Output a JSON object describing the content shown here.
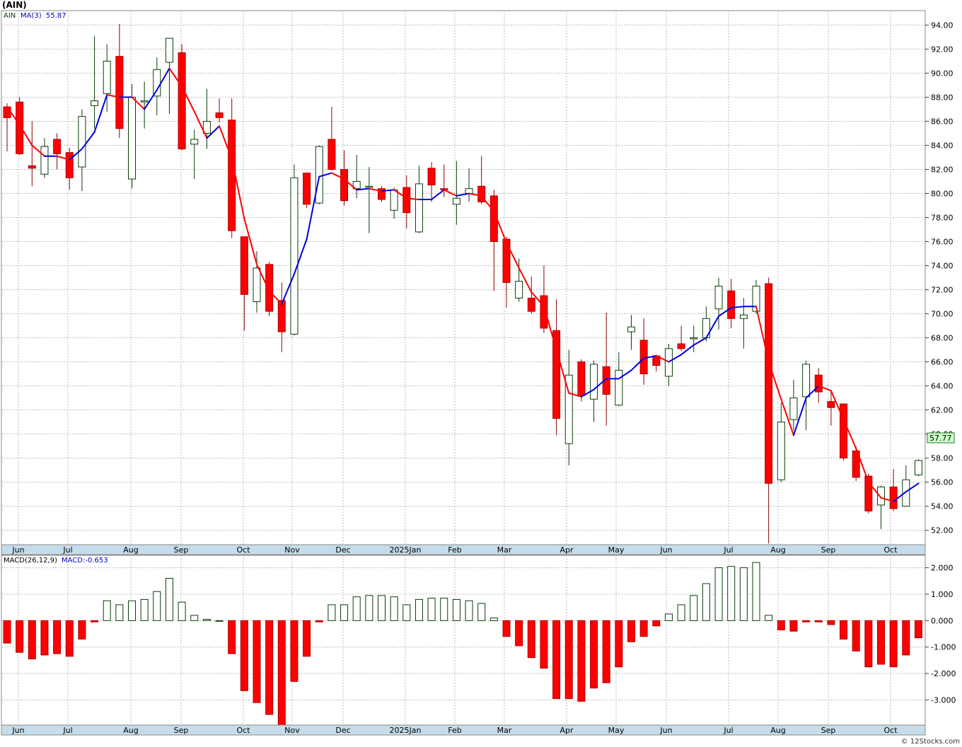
{
  "title": "(AIN)",
  "watermark": "© 12Stocks.com",
  "price_panel": {
    "symbol": "AIN",
    "ma_label": "MA(3)",
    "ma_value": "55.87",
    "last_price_label": "57.77",
    "y_ticks": [
      "94.00",
      "92.00",
      "90.00",
      "88.00",
      "86.00",
      "84.00",
      "82.00",
      "80.00",
      "78.00",
      "76.00",
      "74.00",
      "72.00",
      "70.00",
      "68.00",
      "66.00",
      "64.00",
      "62.00",
      "60.00",
      "58.00",
      "56.00",
      "54.00",
      "52.00"
    ]
  },
  "macd_panel": {
    "label": "MACD(26,12,9)",
    "value_label": "MACD:-0.653",
    "y_ticks": [
      "2.000",
      "1.000",
      "0.000",
      "-1.000",
      "-2.000",
      "-3.000"
    ]
  },
  "month_labels": [
    "Jun",
    "Jul",
    "Aug",
    "Sep",
    "Oct",
    "Nov",
    "Dec",
    "2025Jan",
    "Feb",
    "Mar",
    "Apr",
    "May",
    "Jun",
    "Jul",
    "Aug",
    "Sep",
    "Oct"
  ],
  "colors": {
    "up_candle": "#ffffff",
    "up_outline": "#0a3d0a",
    "down_candle": "#ff0000",
    "ma_up": "#0000dd",
    "ma_down": "#ff0000",
    "axis_strip": "#c7dcea",
    "grid": "#bbbbbb",
    "last_price_box": "#ccffcc"
  },
  "chart_data": {
    "type": "candlestick",
    "interval": "weekly",
    "ylim": [
      50.8,
      95.2
    ],
    "candles": [
      {
        "o": 87.2,
        "h": 87.5,
        "l": 83.5,
        "c": 86.3
      },
      {
        "o": 87.6,
        "h": 88.0,
        "l": 83.2,
        "c": 83.3
      },
      {
        "o": 82.3,
        "h": 86.0,
        "l": 80.6,
        "c": 82.1
      },
      {
        "o": 81.6,
        "h": 84.6,
        "l": 81.3,
        "c": 83.9
      },
      {
        "o": 84.5,
        "h": 85.0,
        "l": 82.0,
        "c": 83.3
      },
      {
        "o": 83.4,
        "h": 83.8,
        "l": 80.3,
        "c": 81.3
      },
      {
        "o": 82.2,
        "h": 87.0,
        "l": 80.2,
        "c": 86.4
      },
      {
        "o": 87.3,
        "h": 93.1,
        "l": 85.4,
        "c": 87.7
      },
      {
        "o": 88.3,
        "h": 92.4,
        "l": 86.8,
        "c": 91.0
      },
      {
        "o": 91.4,
        "h": 94.1,
        "l": 84.6,
        "c": 85.4
      },
      {
        "o": 81.2,
        "h": 89.1,
        "l": 80.4,
        "c": 88.0
      },
      {
        "o": 87.6,
        "h": 89.3,
        "l": 85.4,
        "c": 87.7
      },
      {
        "o": 88.1,
        "h": 91.3,
        "l": 86.5,
        "c": 90.3
      },
      {
        "o": 90.9,
        "h": 92.9,
        "l": 86.6,
        "c": 92.9
      },
      {
        "o": 91.7,
        "h": 92.4,
        "l": 83.6,
        "c": 83.7
      },
      {
        "o": 84.1,
        "h": 85.3,
        "l": 81.2,
        "c": 84.5
      },
      {
        "o": 85.0,
        "h": 88.7,
        "l": 83.7,
        "c": 86.0
      },
      {
        "o": 86.7,
        "h": 87.9,
        "l": 85.9,
        "c": 86.3
      },
      {
        "o": 86.1,
        "h": 87.9,
        "l": 76.3,
        "c": 76.9
      },
      {
        "o": 76.4,
        "h": 76.4,
        "l": 68.6,
        "c": 71.6
      },
      {
        "o": 71.0,
        "h": 75.2,
        "l": 70.1,
        "c": 73.8
      },
      {
        "o": 74.1,
        "h": 74.3,
        "l": 69.8,
        "c": 70.2
      },
      {
        "o": 71.1,
        "h": 72.6,
        "l": 66.8,
        "c": 68.5
      },
      {
        "o": 68.3,
        "h": 82.4,
        "l": 68.2,
        "c": 81.3
      },
      {
        "o": 81.7,
        "h": 81.7,
        "l": 78.8,
        "c": 79.1
      },
      {
        "o": 79.2,
        "h": 84.0,
        "l": 79.1,
        "c": 83.9
      },
      {
        "o": 84.5,
        "h": 87.2,
        "l": 81.9,
        "c": 82.0
      },
      {
        "o": 82.0,
        "h": 83.6,
        "l": 79.0,
        "c": 79.4
      },
      {
        "o": 80.4,
        "h": 83.2,
        "l": 79.6,
        "c": 81.0
      },
      {
        "o": 80.6,
        "h": 82.2,
        "l": 76.7,
        "c": 80.6
      },
      {
        "o": 80.4,
        "h": 80.6,
        "l": 79.3,
        "c": 79.5
      },
      {
        "o": 78.6,
        "h": 80.5,
        "l": 77.9,
        "c": 80.3
      },
      {
        "o": 80.5,
        "h": 81.5,
        "l": 77.1,
        "c": 78.4
      },
      {
        "o": 76.8,
        "h": 82.3,
        "l": 76.7,
        "c": 80.8
      },
      {
        "o": 82.1,
        "h": 82.6,
        "l": 79.3,
        "c": 80.7
      },
      {
        "o": 80.4,
        "h": 82.4,
        "l": 79.7,
        "c": 80.3
      },
      {
        "o": 79.1,
        "h": 82.7,
        "l": 77.4,
        "c": 79.6
      },
      {
        "o": 80.0,
        "h": 82.1,
        "l": 79.3,
        "c": 80.4
      },
      {
        "o": 80.6,
        "h": 83.1,
        "l": 79.1,
        "c": 79.3
      },
      {
        "o": 79.8,
        "h": 80.3,
        "l": 71.9,
        "c": 76.0
      },
      {
        "o": 76.2,
        "h": 76.4,
        "l": 70.5,
        "c": 72.6
      },
      {
        "o": 71.3,
        "h": 74.6,
        "l": 71.0,
        "c": 72.7
      },
      {
        "o": 71.3,
        "h": 73.1,
        "l": 70.0,
        "c": 70.2
      },
      {
        "o": 71.5,
        "h": 74.0,
        "l": 68.4,
        "c": 68.8
      },
      {
        "o": 68.6,
        "h": 71.2,
        "l": 59.9,
        "c": 61.3
      },
      {
        "o": 59.2,
        "h": 67.0,
        "l": 57.4,
        "c": 64.9
      },
      {
        "o": 66.0,
        "h": 66.2,
        "l": 62.7,
        "c": 63.2
      },
      {
        "o": 62.9,
        "h": 66.1,
        "l": 61.0,
        "c": 65.8
      },
      {
        "o": 65.6,
        "h": 70.1,
        "l": 60.7,
        "c": 63.3
      },
      {
        "o": 62.4,
        "h": 66.8,
        "l": 62.3,
        "c": 65.3
      },
      {
        "o": 68.5,
        "h": 69.9,
        "l": 67.0,
        "c": 68.9
      },
      {
        "o": 67.8,
        "h": 69.6,
        "l": 64.1,
        "c": 65.0
      },
      {
        "o": 66.5,
        "h": 66.6,
        "l": 65.2,
        "c": 65.7
      },
      {
        "o": 64.8,
        "h": 67.5,
        "l": 64.0,
        "c": 67.1
      },
      {
        "o": 67.5,
        "h": 69.0,
        "l": 66.9,
        "c": 67.1
      },
      {
        "o": 68.0,
        "h": 69.0,
        "l": 66.8,
        "c": 68.0
      },
      {
        "o": 68.0,
        "h": 70.6,
        "l": 67.7,
        "c": 69.6
      },
      {
        "o": 70.4,
        "h": 73.0,
        "l": 68.7,
        "c": 72.3
      },
      {
        "o": 71.9,
        "h": 72.9,
        "l": 68.8,
        "c": 69.6
      },
      {
        "o": 69.6,
        "h": 71.3,
        "l": 67.1,
        "c": 69.9
      },
      {
        "o": 70.2,
        "h": 72.8,
        "l": 70.0,
        "c": 72.3
      },
      {
        "o": 72.5,
        "h": 73.0,
        "l": 50.9,
        "c": 55.9
      },
      {
        "o": 56.2,
        "h": 62.6,
        "l": 56.0,
        "c": 61.0
      },
      {
        "o": 61.2,
        "h": 64.5,
        "l": 60.3,
        "c": 63.0
      },
      {
        "o": 63.1,
        "h": 66.1,
        "l": 60.3,
        "c": 65.8
      },
      {
        "o": 64.9,
        "h": 65.5,
        "l": 62.6,
        "c": 63.5
      },
      {
        "o": 62.7,
        "h": 63.5,
        "l": 60.7,
        "c": 62.2
      },
      {
        "o": 62.5,
        "h": 62.5,
        "l": 57.8,
        "c": 58.0
      },
      {
        "o": 58.6,
        "h": 59.0,
        "l": 56.1,
        "c": 56.4
      },
      {
        "o": 56.5,
        "h": 56.7,
        "l": 53.4,
        "c": 53.6
      },
      {
        "o": 54.1,
        "h": 55.7,
        "l": 52.1,
        "c": 55.6
      },
      {
        "o": 55.6,
        "h": 57.1,
        "l": 53.6,
        "c": 53.8
      },
      {
        "o": 54.0,
        "h": 57.4,
        "l": 54.0,
        "c": 56.2
      },
      {
        "o": 56.6,
        "h": 57.9,
        "l": 56.5,
        "c": 57.8
      }
    ],
    "ma": [
      87.2,
      85.7,
      84.0,
      83.1,
      83.1,
      82.8,
      83.7,
      85.1,
      88.2,
      88.0,
      88.0,
      87.0,
      88.6,
      90.4,
      88.9,
      86.8,
      84.6,
      85.6,
      82.9,
      77.9,
      74.1,
      71.9,
      70.8,
      73.3,
      76.2,
      81.4,
      81.7,
      81.2,
      80.3,
      80.4,
      80.2,
      80.3,
      79.6,
      79.5,
      79.5,
      80.3,
      79.8,
      80.0,
      79.8,
      78.5,
      75.9,
      73.8,
      71.8,
      70.6,
      67.0,
      63.4,
      63.1,
      63.7,
      64.6,
      64.6,
      65.3,
      66.3,
      66.5,
      66.0,
      66.6,
      67.4,
      68.0,
      69.8,
      70.5,
      70.6,
      70.6,
      66.0,
      62.9,
      59.9,
      63.0,
      64.0,
      63.6,
      61.2,
      58.8,
      56.0,
      54.7,
      54.4,
      55.2,
      55.9
    ],
    "macd": [
      -0.85,
      -1.2,
      -1.45,
      -1.3,
      -1.25,
      -1.35,
      -0.7,
      -0.05,
      0.75,
      0.6,
      0.75,
      0.8,
      1.1,
      1.6,
      0.7,
      0.2,
      0.05,
      0.0,
      -1.25,
      -2.65,
      -3.1,
      -3.55,
      -4.0,
      -2.3,
      -1.35,
      -0.05,
      0.6,
      0.6,
      0.9,
      0.95,
      0.95,
      0.9,
      0.6,
      0.8,
      0.85,
      0.85,
      0.8,
      0.75,
      0.65,
      0.1,
      -0.6,
      -0.95,
      -1.4,
      -1.8,
      -2.95,
      -2.95,
      -3.05,
      -2.55,
      -2.35,
      -1.75,
      -0.8,
      -0.6,
      -0.2,
      0.25,
      0.6,
      0.95,
      1.4,
      2.0,
      2.05,
      2.0,
      2.2,
      0.2,
      -0.35,
      -0.4,
      -0.05,
      -0.05,
      -0.15,
      -0.7,
      -1.15,
      -1.75,
      -1.65,
      -1.75,
      -1.3,
      -0.65
    ],
    "macd_ylim": [
      -3.95,
      2.47
    ]
  }
}
